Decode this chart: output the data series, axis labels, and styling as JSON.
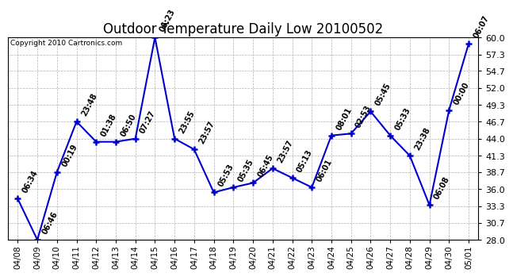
{
  "title": "Outdoor Temperature Daily Low 20100502",
  "copyright": "Copyright 2010 Cartronics.com",
  "dates": [
    "04/08",
    "04/09",
    "04/10",
    "04/11",
    "04/12",
    "04/13",
    "04/14",
    "04/15",
    "04/16",
    "04/17",
    "04/18",
    "04/19",
    "04/20",
    "04/21",
    "04/22",
    "04/23",
    "04/24",
    "04/25",
    "04/26",
    "04/27",
    "04/28",
    "04/29",
    "04/30",
    "05/01"
  ],
  "temps": [
    34.5,
    28.0,
    38.7,
    46.7,
    43.5,
    43.5,
    44.0,
    60.0,
    44.0,
    42.3,
    35.5,
    36.3,
    37.0,
    39.3,
    37.8,
    36.3,
    44.5,
    44.8,
    48.3,
    44.5,
    41.3,
    33.5,
    48.5,
    59.0
  ],
  "labels": [
    "06:34",
    "06:46",
    "00:19",
    "23:48",
    "01:38",
    "06:50",
    "07:27",
    "06:23",
    "23:55",
    "23:57",
    "05:53",
    "05:35",
    "06:45",
    "23:57",
    "05:13",
    "06:01",
    "08:01",
    "02:53",
    "05:45",
    "05:33",
    "23:38",
    "06:08",
    "00:00",
    "06:07"
  ],
  "yticks": [
    28.0,
    30.7,
    33.3,
    36.0,
    38.7,
    41.3,
    44.0,
    46.7,
    49.3,
    52.0,
    54.7,
    57.3,
    60.0
  ],
  "ylim": [
    28.0,
    60.0
  ],
  "line_color": "#0000cc",
  "marker_color": "#0000cc",
  "bg_color": "#ffffff",
  "grid_color": "#aaaaaa",
  "title_fontsize": 12,
  "label_fontsize": 7.0,
  "annotation_rotation": 62
}
